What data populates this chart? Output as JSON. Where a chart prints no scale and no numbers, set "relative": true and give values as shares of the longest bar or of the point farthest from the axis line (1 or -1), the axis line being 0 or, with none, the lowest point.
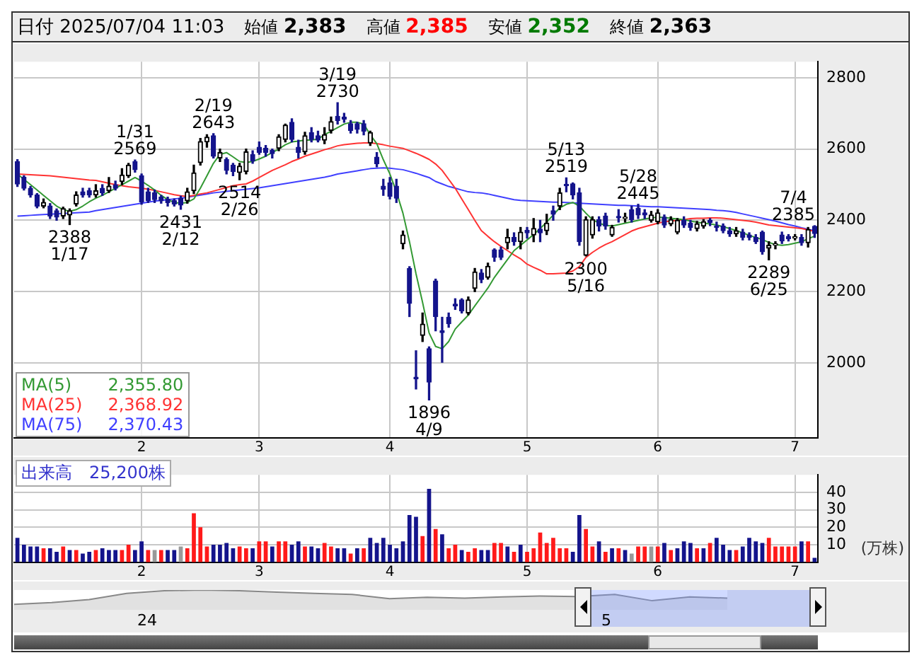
{
  "chart_data": [
    {
      "type": "other",
      "annotations": [
        "日付 2025/07/04 11:03",
        "始値 2,383",
        "高値 2,385",
        "安値 2,352",
        "終値 2,363"
      ]
    },
    {
      "type": "candlestick",
      "categories": [
        null,
        null,
        null,
        null,
        null,
        null,
        null,
        null,
        null,
        null,
        null,
        null,
        null,
        null,
        null,
        null,
        null,
        null,
        null,
        "2",
        null,
        null,
        null,
        null,
        null,
        null,
        null,
        null,
        null,
        null,
        null,
        null,
        null,
        null,
        null,
        null,
        null,
        "3",
        null,
        null,
        null,
        null,
        null,
        null,
        null,
        null,
        null,
        null,
        null,
        null,
        null,
        null,
        null,
        null,
        null,
        null,
        null,
        "4",
        null,
        null,
        null,
        null,
        null,
        null,
        null,
        null,
        null,
        null,
        null,
        null,
        null,
        null,
        null,
        null,
        null,
        null,
        null,
        null,
        "5",
        null,
        null,
        null,
        null,
        null,
        null,
        null,
        null,
        null,
        null,
        null,
        null,
        null,
        null,
        null,
        null,
        null,
        null,
        null,
        "6",
        null,
        null,
        null,
        null,
        null,
        null,
        null,
        null,
        null,
        null,
        null,
        null,
        null,
        null,
        null,
        null,
        null,
        null,
        null,
        null,
        "7",
        null,
        null,
        null
      ],
      "ohlc": [
        [
          2565,
          2570,
          2495,
          2502
        ],
        [
          2521,
          2525,
          2485,
          2490
        ],
        [
          2490,
          2495,
          2465,
          2471
        ],
        [
          2471,
          2475,
          2435,
          2440
        ],
        [
          2440,
          2460,
          2435,
          2450
        ],
        [
          2440,
          2447,
          2405,
          2412
        ],
        [
          2427,
          2432,
          2400,
          2409
        ],
        [
          2412,
          2437,
          2405,
          2433
        ],
        [
          2415,
          2432,
          2388,
          2427
        ],
        [
          2446,
          2480,
          2440,
          2471
        ],
        [
          2480,
          2490,
          2465,
          2471
        ],
        [
          2483,
          2490,
          2465,
          2471
        ],
        [
          2471,
          2500,
          2465,
          2483
        ],
        [
          2490,
          2500,
          2470,
          2477
        ],
        [
          2483,
          2520,
          2478,
          2496
        ],
        [
          2500,
          2510,
          2485,
          2490
        ],
        [
          2509,
          2545,
          2500,
          2527
        ],
        [
          2525,
          2560,
          2520,
          2555
        ],
        [
          2565,
          2569,
          2535,
          2542
        ],
        [
          2525,
          2530,
          2445,
          2452
        ],
        [
          2480,
          2490,
          2450,
          2455
        ],
        [
          2477,
          2485,
          2450,
          2458
        ],
        [
          2465,
          2470,
          2448,
          2455
        ],
        [
          2459,
          2465,
          2440,
          2450
        ],
        [
          2455,
          2460,
          2440,
          2446
        ],
        [
          2462,
          2468,
          2431,
          2443
        ],
        [
          2455,
          2490,
          2448,
          2480
        ],
        [
          2483,
          2555,
          2475,
          2533
        ],
        [
          2562,
          2630,
          2555,
          2621
        ],
        [
          2620,
          2640,
          2605,
          2633
        ],
        [
          2637,
          2643,
          2575,
          2580
        ],
        [
          2575,
          2600,
          2565,
          2590
        ],
        [
          2570,
          2575,
          2530,
          2540
        ],
        [
          2555,
          2560,
          2525,
          2537
        ],
        [
          2534,
          2560,
          2514,
          2552
        ],
        [
          2537,
          2600,
          2530,
          2592
        ],
        [
          2584,
          2595,
          2560,
          2567
        ],
        [
          2605,
          2620,
          2585,
          2590
        ],
        [
          2602,
          2610,
          2580,
          2590
        ],
        [
          2596,
          2600,
          2575,
          2587
        ],
        [
          2602,
          2640,
          2595,
          2634
        ],
        [
          2627,
          2670,
          2620,
          2667
        ],
        [
          2675,
          2685,
          2620,
          2627
        ],
        [
          2605,
          2625,
          2575,
          2590
        ],
        [
          2592,
          2647,
          2585,
          2637
        ],
        [
          2646,
          2660,
          2620,
          2627
        ],
        [
          2637,
          2650,
          2620,
          2625
        ],
        [
          2625,
          2660,
          2615,
          2640
        ],
        [
          2652,
          2690,
          2645,
          2677
        ],
        [
          2692,
          2730,
          2670,
          2680
        ],
        [
          2690,
          2700,
          2675,
          2684
        ],
        [
          2671,
          2680,
          2645,
          2652
        ],
        [
          2671,
          2675,
          2645,
          2655
        ],
        [
          2671,
          2680,
          2640,
          2650
        ],
        [
          2617,
          2650,
          2610,
          2646
        ],
        [
          2577,
          2590,
          2550,
          2559
        ],
        [
          2496,
          2515,
          2470,
          2487
        ],
        [
          2505,
          2520,
          2460,
          2467
        ],
        [
          2496,
          2515,
          2450,
          2462
        ],
        [
          2334,
          2370,
          2320,
          2359
        ],
        [
          2265,
          2270,
          2130,
          2167
        ],
        [
          1960,
          2034,
          1927,
          1955
        ],
        [
          2077,
          2140,
          2060,
          2109
        ],
        [
          2040,
          2045,
          1896,
          1946
        ],
        [
          2230,
          2235,
          2090,
          2130
        ],
        [
          2090,
          2128,
          2002,
          2085
        ],
        [
          2128,
          2140,
          2100,
          2110
        ],
        [
          2165,
          2180,
          2150,
          2160
        ],
        [
          2177,
          2180,
          2140,
          2146
        ],
        [
          2140,
          2185,
          2135,
          2177
        ],
        [
          2209,
          2265,
          2200,
          2255
        ],
        [
          2252,
          2262,
          2225,
          2234
        ],
        [
          2240,
          2280,
          2235,
          2271
        ],
        [
          2317,
          2320,
          2285,
          2296
        ],
        [
          2317,
          2325,
          2290,
          2296
        ],
        [
          2337,
          2375,
          2320,
          2352
        ],
        [
          2352,
          2365,
          2330,
          2340
        ],
        [
          2340,
          2380,
          2320,
          2367
        ],
        [
          2372,
          2380,
          2350,
          2365
        ],
        [
          2359,
          2405,
          2340,
          2377
        ],
        [
          2375,
          2400,
          2340,
          2365
        ],
        [
          2371,
          2417,
          2360,
          2392
        ],
        [
          2427,
          2440,
          2400,
          2417
        ],
        [
          2440,
          2490,
          2430,
          2477
        ],
        [
          2500,
          2519,
          2480,
          2497
        ],
        [
          2502,
          2505,
          2460,
          2471
        ],
        [
          2477,
          2490,
          2330,
          2340
        ],
        [
          2302,
          2410,
          2300,
          2402
        ],
        [
          2359,
          2410,
          2350,
          2402
        ],
        [
          2402,
          2410,
          2370,
          2384
        ],
        [
          2412,
          2420,
          2375,
          2384
        ],
        [
          2359,
          2386,
          2355,
          2380
        ],
        [
          2410,
          2430,
          2395,
          2407
        ],
        [
          2405,
          2420,
          2395,
          2407
        ],
        [
          2430,
          2440,
          2395,
          2402
        ],
        [
          2434,
          2445,
          2405,
          2415
        ],
        [
          2421,
          2430,
          2405,
          2415
        ],
        [
          2400,
          2425,
          2395,
          2415
        ],
        [
          2396,
          2430,
          2390,
          2421
        ],
        [
          2409,
          2415,
          2380,
          2387
        ],
        [
          2390,
          2410,
          2385,
          2402
        ],
        [
          2367,
          2405,
          2362,
          2400
        ],
        [
          2400,
          2410,
          2380,
          2387
        ],
        [
          2392,
          2400,
          2372,
          2380
        ],
        [
          2377,
          2397,
          2370,
          2390
        ],
        [
          2384,
          2402,
          2378,
          2396
        ],
        [
          2400,
          2405,
          2385,
          2394
        ],
        [
          2384,
          2395,
          2370,
          2380
        ],
        [
          2384,
          2390,
          2365,
          2371
        ],
        [
          2371,
          2380,
          2355,
          2362
        ],
        [
          2362,
          2380,
          2355,
          2371
        ],
        [
          2367,
          2375,
          2345,
          2352
        ],
        [
          2359,
          2365,
          2345,
          2352
        ],
        [
          2352,
          2360,
          2335,
          2340
        ],
        [
          2367,
          2370,
          2305,
          2312
        ],
        [
          2322,
          2340,
          2289,
          2330
        ],
        [
          2330,
          2340,
          2320,
          2334
        ],
        [
          2359,
          2367,
          2335,
          2342
        ],
        [
          2355,
          2360,
          2342,
          2348
        ],
        [
          2350,
          2360,
          2345,
          2352
        ],
        [
          2352,
          2360,
          2330,
          2337
        ],
        [
          2337,
          2380,
          2325,
          2374
        ],
        [
          2383,
          2385,
          2352,
          2363
        ]
      ],
      "series": [
        {
          "type": "line",
          "name": "MA(5)  2,355.80",
          "color": "#339933",
          "values": [
            2530,
            2515,
            2500,
            2485,
            2470,
            2455,
            2440,
            2430,
            2425,
            2430,
            2440,
            2452,
            2462,
            2470,
            2480,
            2490,
            2500,
            2510,
            2520,
            2510,
            2498,
            2485,
            2470,
            2458,
            2450,
            2448,
            2450,
            2460,
            2490,
            2525,
            2560,
            2585,
            2590,
            2578,
            2565,
            2562,
            2565,
            2572,
            2580,
            2590,
            2600,
            2612,
            2620,
            2622,
            2625,
            2625,
            2628,
            2640,
            2650,
            2660,
            2670,
            2675,
            2675,
            2670,
            2640,
            2615,
            2570,
            2530,
            2480,
            2420,
            2340,
            2250,
            2170,
            2084,
            2046,
            2040,
            2060,
            2095,
            2115,
            2134,
            2160,
            2185,
            2210,
            2240,
            2265,
            2290,
            2315,
            2330,
            2345,
            2360,
            2377,
            2395,
            2415,
            2435,
            2445,
            2450,
            2440,
            2420,
            2402,
            2392,
            2386,
            2384,
            2388,
            2392,
            2396,
            2400,
            2404,
            2407,
            2409,
            2408,
            2406,
            2404,
            2402,
            2398,
            2395,
            2392,
            2390,
            2387,
            2382,
            2377,
            2371,
            2365,
            2358,
            2352,
            2346,
            2338,
            2332,
            2330,
            2332,
            2336,
            2340,
            2348,
            2355.8
          ]
        },
        {
          "type": "line",
          "name": "MA(25)  2,368.92",
          "color": "#ff3333",
          "values": [
            2530,
            2529,
            2528,
            2527,
            2526,
            2525,
            2523,
            2521,
            2519,
            2517,
            2515,
            2513,
            2512,
            2508,
            2504,
            2500,
            2497,
            2494,
            2492,
            2490,
            2487,
            2484,
            2480,
            2476,
            2472,
            2469,
            2467,
            2470,
            2474,
            2477,
            2482,
            2487,
            2492,
            2497,
            2500,
            2502,
            2510,
            2520,
            2530,
            2540,
            2548,
            2556,
            2565,
            2572,
            2580,
            2586,
            2592,
            2598,
            2603,
            2609,
            2612,
            2614,
            2616,
            2617,
            2617,
            2615,
            2612,
            2608,
            2605,
            2602,
            2595,
            2588,
            2580,
            2571,
            2558,
            2540,
            2515,
            2490,
            2460,
            2430,
            2400,
            2371,
            2355,
            2340,
            2327,
            2315,
            2303,
            2292,
            2277,
            2268,
            2260,
            2250,
            2250,
            2251,
            2252,
            2258,
            2270,
            2296,
            2310,
            2322,
            2332,
            2340,
            2350,
            2360,
            2370,
            2377,
            2382,
            2387,
            2392,
            2396,
            2398,
            2400,
            2402,
            2405,
            2406,
            2406,
            2407,
            2407,
            2406,
            2404,
            2402,
            2400,
            2398,
            2395,
            2391,
            2387,
            2385,
            2383,
            2381,
            2379,
            2377,
            2373,
            2368.92
          ]
        },
        {
          "type": "line",
          "name": "MA(75)  2,370.43",
          "color": "#4040ff",
          "values": [
            2412,
            2413,
            2414,
            2415,
            2416,
            2417,
            2418,
            2419,
            2420,
            2421,
            2422,
            2423,
            2427,
            2430,
            2433,
            2436,
            2439,
            2442,
            2445,
            2448,
            2451,
            2454,
            2456,
            2458,
            2460,
            2462,
            2465,
            2468,
            2471,
            2474,
            2477,
            2479,
            2481,
            2483,
            2485,
            2487,
            2489,
            2491,
            2494,
            2497,
            2500,
            2503,
            2506,
            2509,
            2512,
            2515,
            2518,
            2521,
            2525,
            2530,
            2533,
            2536,
            2539,
            2542,
            2545,
            2546,
            2547,
            2546,
            2544,
            2542,
            2537,
            2532,
            2526,
            2520,
            2509,
            2502,
            2495,
            2490,
            2485,
            2480,
            2478,
            2477,
            2474,
            2470,
            2466,
            2462,
            2458,
            2456,
            2455,
            2454,
            2453,
            2452,
            2451,
            2451,
            2450,
            2449,
            2448,
            2447,
            2446,
            2445,
            2444,
            2443,
            2442,
            2442,
            2441,
            2440,
            2439,
            2438,
            2438,
            2437,
            2436,
            2435,
            2434,
            2433,
            2432,
            2431,
            2430,
            2428,
            2427,
            2425,
            2422,
            2418,
            2414,
            2410,
            2406,
            2402,
            2398,
            2393,
            2388,
            2384,
            2379,
            2375,
            2370.43
          ]
        }
      ],
      "ylim": [
        1790,
        2845
      ],
      "yticks": [
        2000,
        2200,
        2400,
        2600,
        2800
      ],
      "grid": true,
      "annotations": [
        {
          "text": "2388\n1/17",
          "y": 2388
        },
        {
          "text": "1/31\n2569",
          "y": 2569
        },
        {
          "text": "2431\n2/12",
          "y": 2431
        },
        {
          "text": "2/19\n2643",
          "y": 2643
        },
        {
          "text": "2514\n2/26",
          "y": 2514
        },
        {
          "text": "3/19\n2730",
          "y": 2730
        },
        {
          "text": "1896\n4/9",
          "y": 1896
        },
        {
          "text": "5/13\n2519",
          "y": 2519
        },
        {
          "text": "2300\n5/16",
          "y": 2300
        },
        {
          "text": "5/28\n2445",
          "y": 2445
        },
        {
          "text": "2289\n6/25",
          "y": 2289
        },
        {
          "text": "7/4\n2385",
          "y": 2385
        }
      ]
    },
    {
      "type": "bar",
      "title": "出来高　25,200株",
      "ylabel": "(万株)",
      "categories": [
        null,
        null,
        null,
        null,
        null,
        null,
        null,
        null,
        null,
        null,
        null,
        null,
        null,
        null,
        null,
        null,
        null,
        null,
        null,
        "2",
        null,
        null,
        null,
        null,
        null,
        null,
        null,
        null,
        null,
        null,
        null,
        null,
        null,
        null,
        null,
        null,
        null,
        "3",
        null,
        null,
        null,
        null,
        null,
        null,
        null,
        null,
        null,
        null,
        null,
        null,
        null,
        null,
        null,
        null,
        null,
        null,
        null,
        "4",
        null,
        null,
        null,
        null,
        null,
        null,
        null,
        null,
        null,
        null,
        null,
        null,
        null,
        null,
        null,
        null,
        null,
        null,
        null,
        null,
        "5",
        null,
        null,
        null,
        null,
        null,
        null,
        null,
        null,
        null,
        null,
        null,
        null,
        null,
        null,
        null,
        null,
        null,
        null,
        null,
        "6",
        null,
        null,
        null,
        null,
        null,
        null,
        null,
        null,
        null,
        null,
        null,
        null,
        null,
        null,
        null,
        null,
        null,
        null,
        null,
        null,
        "7",
        null,
        null,
        null
      ],
      "values": [
        14,
        10,
        9,
        9,
        8,
        8,
        6,
        9,
        7,
        7,
        5,
        6,
        7,
        8,
        7,
        7,
        7,
        10,
        7,
        12,
        7,
        7,
        7,
        7,
        7,
        9,
        8,
        28,
        20,
        9,
        10,
        10,
        11,
        8,
        9,
        8,
        8,
        12,
        12,
        9,
        12,
        12,
        10,
        12,
        9,
        9,
        8,
        11,
        9,
        8,
        8,
        5,
        8,
        8,
        14,
        11,
        14,
        10,
        8,
        12,
        27,
        26,
        15,
        42,
        19,
        16,
        8,
        10,
        7,
        6,
        8,
        7,
        7,
        11,
        11,
        9,
        6,
        10,
        6,
        8,
        17,
        11,
        14,
        8,
        8,
        6,
        27,
        19,
        9,
        12,
        6,
        8,
        8,
        7,
        5,
        9,
        9,
        9,
        9,
        11,
        7,
        8,
        12,
        11,
        8,
        8,
        11,
        14,
        10,
        7,
        7,
        9,
        14,
        12,
        11,
        14,
        9,
        9,
        9,
        9,
        12,
        12,
        2.52
      ],
      "colors": [
        "#14148c",
        "#14148c",
        "#14148c",
        "#14148c",
        "#ff1a1a",
        "#14148c",
        "#14148c",
        "#ff1a1a",
        "#14148c",
        "#ff1a1a",
        "#14148c",
        "#14148c",
        "#ff1a1a",
        "#14148c",
        "#14148c",
        "#14148c",
        "#ff1a1a",
        "#ff1a1a",
        "#14148c",
        "#14148c",
        "#ff1a1a",
        "#999999",
        "#ff1a1a",
        "#14148c",
        "#14148c",
        "#999999",
        "#ff1a1a",
        "#ff1a1a",
        "#ff1a1a",
        "#ff1a1a",
        "#14148c",
        "#14148c",
        "#14148c",
        "#14148c",
        "#ff1a1a",
        "#ff1a1a",
        "#14148c",
        "#ff1a1a",
        "#ff1a1a",
        "#14148c",
        "#ff1a1a",
        "#ff1a1a",
        "#14148c",
        "#14148c",
        "#ff1a1a",
        "#14148c",
        "#14148c",
        "#ff1a1a",
        "#ff1a1a",
        "#14148c",
        "#14148c",
        "#ff1a1a",
        "#14148c",
        "#ff1a1a",
        "#14148c",
        "#14148c",
        "#14148c",
        "#14148c",
        "#14148c",
        "#14148c",
        "#14148c",
        "#14148c",
        "#ff1a1a",
        "#14148c",
        "#ff1a1a",
        "#14148c",
        "#ff1a1a",
        "#ff1a1a",
        "#14148c",
        "#ff1a1a",
        "#ff1a1a",
        "#14148c",
        "#14148c",
        "#ff1a1a",
        "#ff1a1a",
        "#14148c",
        "#ff1a1a",
        "#14148c",
        "#ff1a1a",
        "#ff1a1a",
        "#ff1a1a",
        "#ff1a1a",
        "#ff1a1a",
        "#ff1a1a",
        "#ff1a1a",
        "#14148c",
        "#14148c",
        "#ff1a1a",
        "#ff1a1a",
        "#14148c",
        "#ff1a1a",
        "#14148c",
        "#ff1a1a",
        "#14148c",
        "#999999",
        "#ff1a1a",
        "#ff1a1a",
        "#999999",
        "#ff1a1a",
        "#14148c",
        "#ff1a1a",
        "#14148c",
        "#14148c",
        "#14148c",
        "#ff1a1a",
        "#14148c",
        "#ff1a1a",
        "#14148c",
        "#14148c",
        "#14148c",
        "#ff1a1a",
        "#14148c",
        "#14148c",
        "#14148c",
        "#14148c",
        "#ff1a1a",
        "#ff1a1a",
        "#ff1a1a",
        "#ff1a1a",
        "#ff1a1a",
        "#14148c",
        "#ff1a1a",
        "#14148c"
      ],
      "ylim": [
        0,
        50
      ],
      "yticks": [
        10,
        20,
        30,
        40
      ],
      "grid": true
    },
    {
      "type": "area",
      "relative": true,
      "tick_labels": false,
      "color": "#888888",
      "categories": [
        null,
        null,
        null,
        null,
        null,
        null,
        null,
        null,
        null,
        null,
        null,
        null,
        null,
        null,
        null,
        null,
        null,
        null,
        null,
        null
      ],
      "values": [
        0.28,
        0.37,
        0.52,
        0.83,
        0.96,
        1,
        0.96,
        0.89,
        0.83,
        0.78,
        0.56,
        0.63,
        0.59,
        0.65,
        0.7,
        0.67,
        0.78,
        0.46,
        0.65,
        0.59
      ],
      "annotations": [
        "24",
        "5"
      ]
    }
  ]
}
